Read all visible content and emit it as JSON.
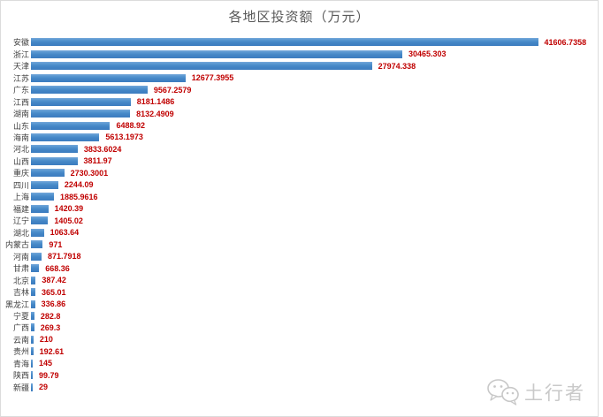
{
  "title": "各地区投资额（万元）",
  "watermark": {
    "text": "土行者",
    "icon": "wechat-icon"
  },
  "colors": {
    "bar_top": "#74A7DA",
    "bar_bottom": "#3C7CBF",
    "value_label": "#C00000",
    "title_text": "#595959",
    "category_text": "#404040",
    "watermark_text": "#C9C9C9",
    "frame_border": "#DCDCDC"
  },
  "chart_data": {
    "type": "bar",
    "orientation": "horizontal",
    "title": "各地区投资额（万元）",
    "xlabel": "",
    "ylabel": "",
    "xlim": [
      0,
      46500
    ],
    "grid": false,
    "legend": false,
    "data_labels": true,
    "categories": [
      "安徽",
      "浙江",
      "天津",
      "江苏",
      "广东",
      "江西",
      "湖南",
      "山东",
      "海南",
      "河北",
      "山西",
      "重庆",
      "四川",
      "上海",
      "福建",
      "辽宁",
      "湖北",
      "内蒙古",
      "河南",
      "甘肃",
      "北京",
      "吉林",
      "黑龙江",
      "宁夏",
      "广西",
      "云南",
      "贵州",
      "青海",
      "陕西",
      "新疆"
    ],
    "values": [
      41606.7358,
      30465.303,
      27974.338,
      12677.3955,
      9567.2579,
      8181.1486,
      8132.4909,
      6488.92,
      5613.1973,
      3833.6024,
      3811.97,
      2730.3001,
      2244.09,
      1885.9616,
      1420.39,
      1405.02,
      1063.64,
      971,
      871.7918,
      668.36,
      387.42,
      365.01,
      336.86,
      282.8,
      269.3,
      210,
      192.61,
      145,
      99.79,
      29
    ],
    "value_labels": [
      "41606.7358",
      "30465.303",
      "27974.338",
      "12677.3955",
      "9567.2579",
      "8181.1486",
      "8132.4909",
      "6488.92",
      "5613.1973",
      "3833.6024",
      "3811.97",
      "2730.3001",
      "2244.09",
      "1885.9616",
      "1420.39",
      "1405.02",
      "1063.64",
      "971",
      "871.7918",
      "668.36",
      "387.42",
      "365.01",
      "336.86",
      "282.8",
      "269.3",
      "210",
      "192.61",
      "145",
      "99.79",
      "29"
    ]
  }
}
